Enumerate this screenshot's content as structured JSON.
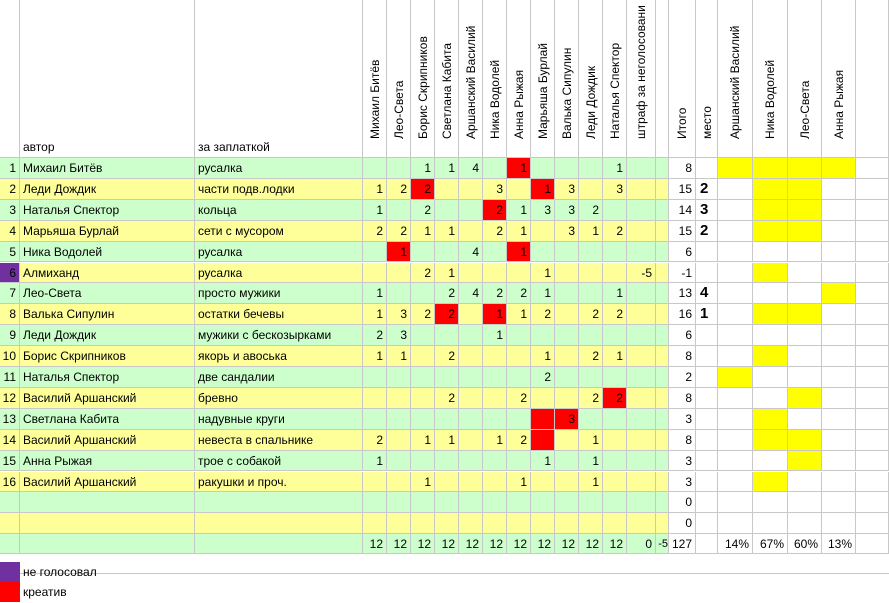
{
  "colors": {
    "green": "#ccffcc",
    "yellow": "#ffff99",
    "red": "#ff0000",
    "purple": "#7030a0",
    "highlight": "#ffff00",
    "grid": "#c8c8c8"
  },
  "headers": {
    "author": "автор",
    "item": "за заплаткой",
    "judges": [
      "Михаил Битёв",
      "Лео-Света",
      "Борис Скрипников",
      "Светлана Кабита",
      "Аршанский Василий",
      "Ника Водолей",
      "Анна Рыжая",
      "Марьяша Бурлай",
      "Валька Сипулин",
      "Леди Дождик",
      "Наталья Спектор"
    ],
    "penalty": "штраф за неголосовани",
    "total": "Итого",
    "place": "место",
    "extra": [
      "Аршанский Василий",
      "Ника Водолей",
      "Лео-Света",
      "Анна Рыжая"
    ]
  },
  "rows": [
    {
      "n": "1",
      "author": "Михаил Битёв",
      "item": "русалка",
      "bg": "green",
      "votes": [
        "",
        "",
        "1",
        "1",
        "4",
        "",
        "1",
        "",
        "",
        "",
        "1"
      ],
      "red": [
        6
      ],
      "penalty": "",
      "total": "8",
      "place": "",
      "extra": [
        "y",
        "y",
        "y",
        "y"
      ]
    },
    {
      "n": "2",
      "author": "Леди Дождик",
      "item": "части подв.лодки",
      "bg": "yellow",
      "votes": [
        "1",
        "2",
        "2",
        "",
        "",
        "3",
        "",
        "1",
        "3",
        "",
        "3"
      ],
      "red": [
        2,
        7
      ],
      "penalty": "",
      "total": "15",
      "place": "2",
      "extra": [
        "",
        "y",
        "y",
        ""
      ]
    },
    {
      "n": "3",
      "author": "Наталья Спектор",
      "item": "кольца",
      "bg": "green",
      "votes": [
        "1",
        "",
        "2",
        "",
        "",
        "2",
        "1",
        "3",
        "3",
        "2",
        ""
      ],
      "red": [
        5
      ],
      "penalty": "",
      "total": "14",
      "place": "3",
      "extra": [
        "",
        "y",
        "y",
        ""
      ]
    },
    {
      "n": "4",
      "author": "Марьяша Бурлай",
      "item": "сети с мусором",
      "bg": "yellow",
      "votes": [
        "2",
        "2",
        "1",
        "1",
        "",
        "2",
        "1",
        "",
        "3",
        "1",
        "2"
      ],
      "red": [],
      "penalty": "",
      "total": "15",
      "place": "2",
      "extra": [
        "",
        "y",
        "y",
        ""
      ]
    },
    {
      "n": "5",
      "author": "Ника Водолей",
      "item": "русалка",
      "bg": "green",
      "votes": [
        "",
        "1",
        "",
        "",
        "4",
        "",
        "1",
        "",
        "",
        "",
        ""
      ],
      "red": [
        1,
        6
      ],
      "penalty": "",
      "total": "6",
      "place": "",
      "extra": [
        "",
        "",
        "",
        ""
      ]
    },
    {
      "n": "6",
      "author": "Алмиханд",
      "item": "русалка",
      "bg": "yellow",
      "purple": true,
      "votes": [
        "",
        "",
        "2",
        "1",
        "",
        "",
        "",
        "1",
        "",
        "",
        ""
      ],
      "red": [],
      "penalty": "-5",
      "total": "-1",
      "place": "",
      "extra": [
        "",
        "y",
        "",
        ""
      ]
    },
    {
      "n": "7",
      "author": "Лео-Света",
      "item": "просто мужики",
      "bg": "green",
      "votes": [
        "1",
        "",
        "",
        "2",
        "4",
        "2",
        "2",
        "1",
        "",
        "",
        "1"
      ],
      "red": [],
      "penalty": "",
      "total": "13",
      "place": "4",
      "extra": [
        "",
        "",
        "",
        "y"
      ]
    },
    {
      "n": "8",
      "author": "Валька Сипулин",
      "item": "остатки бечевы",
      "bg": "yellow",
      "votes": [
        "1",
        "3",
        "2",
        "2",
        "",
        "1",
        "1",
        "2",
        "",
        "2",
        "2"
      ],
      "red": [
        3,
        5
      ],
      "penalty": "",
      "total": "16",
      "place": "1",
      "extra": [
        "",
        "y",
        "y",
        ""
      ]
    },
    {
      "n": "9",
      "author": "Леди Дождик",
      "item": "мужики с бескозырками",
      "bg": "green",
      "votes": [
        "2",
        "3",
        "",
        "",
        "",
        "1",
        "",
        "",
        "",
        "",
        ""
      ],
      "red": [],
      "penalty": "",
      "total": "6",
      "place": "",
      "extra": [
        "",
        "",
        "",
        ""
      ]
    },
    {
      "n": "10",
      "author": "Борис Скрипников",
      "item": "якорь и авоська",
      "bg": "yellow",
      "votes": [
        "1",
        "1",
        "",
        "2",
        "",
        "",
        "",
        "1",
        "",
        "2",
        "1"
      ],
      "red": [],
      "penalty": "",
      "total": "8",
      "place": "",
      "extra": [
        "",
        "y",
        "",
        ""
      ]
    },
    {
      "n": "11",
      "author": "Наталья Спектор",
      "item": "две сандалии",
      "bg": "green",
      "votes": [
        "",
        "",
        "",
        "",
        "",
        "",
        "",
        "2",
        "",
        "",
        ""
      ],
      "red": [],
      "penalty": "",
      "total": "2",
      "place": "",
      "extra": [
        "y",
        "",
        "",
        ""
      ]
    },
    {
      "n": "12",
      "author": "Василий Аршанский",
      "item": "бревно",
      "bg": "yellow",
      "votes": [
        "",
        "",
        "",
        "2",
        "",
        "",
        "2",
        "",
        "",
        "2",
        "2"
      ],
      "red": [
        10
      ],
      "penalty": "",
      "total": "8",
      "place": "",
      "extra": [
        "",
        "",
        "y",
        ""
      ]
    },
    {
      "n": "13",
      "author": "Светлана Кабита",
      "item": "надувные круги",
      "bg": "green",
      "votes": [
        "",
        "",
        "",
        "",
        "",
        "",
        "",
        "",
        "3",
        "",
        ""
      ],
      "red": [
        7,
        8
      ],
      "penalty": "",
      "total": "3",
      "place": "",
      "extra": [
        "",
        "y",
        "",
        ""
      ]
    },
    {
      "n": "14",
      "author": "Василий Аршанский",
      "item": "невеста в спальнике",
      "bg": "yellow",
      "votes": [
        "2",
        "",
        "1",
        "1",
        "",
        "1",
        "2",
        "",
        "",
        "1",
        ""
      ],
      "red": [
        7
      ],
      "penalty": "",
      "total": "8",
      "place": "",
      "extra": [
        "",
        "y",
        "y",
        ""
      ]
    },
    {
      "n": "15",
      "author": "Анна Рыжая",
      "item": "трое с собакой",
      "bg": "green",
      "votes": [
        "1",
        "",
        "",
        "",
        "",
        "",
        "",
        "1",
        "",
        "1",
        ""
      ],
      "red": [],
      "penalty": "",
      "total": "3",
      "place": "",
      "extra": [
        "",
        "",
        "y",
        ""
      ]
    },
    {
      "n": "16",
      "author": "Василий Аршанский",
      "item": "ракушки и проч.",
      "bg": "yellow",
      "votes": [
        "",
        "",
        "1",
        "",
        "",
        "",
        "1",
        "",
        "",
        "1",
        ""
      ],
      "red": [],
      "penalty": "",
      "total": "3",
      "place": "",
      "extra": [
        "",
        "y",
        "",
        ""
      ]
    },
    {
      "n": "",
      "author": "",
      "item": "",
      "bg": "green",
      "votes": [
        "",
        "",
        "",
        "",
        "",
        "",
        "",
        "",
        "",
        "",
        ""
      ],
      "red": [],
      "penalty": "",
      "total": "0",
      "place": "",
      "extra": [
        "",
        "",
        "",
        ""
      ]
    },
    {
      "n": "",
      "author": "",
      "item": "",
      "bg": "yellow",
      "votes": [
        "",
        "",
        "",
        "",
        "",
        "",
        "",
        "",
        "",
        "",
        ""
      ],
      "red": [],
      "penalty": "",
      "total": "0",
      "place": "",
      "extra": [
        "",
        "",
        "",
        ""
      ]
    }
  ],
  "totals": {
    "votes": [
      "12",
      "12",
      "12",
      "12",
      "12",
      "12",
      "12",
      "12",
      "12",
      "12",
      "12"
    ],
    "penalty_a": "0",
    "penalty_b": "-5",
    "total": "127",
    "extra": [
      "14%",
      "67%",
      "60%",
      "13%"
    ]
  },
  "legend": [
    {
      "color": "purple",
      "label": "не голосовал"
    },
    {
      "color": "red",
      "label": "креатив"
    }
  ]
}
